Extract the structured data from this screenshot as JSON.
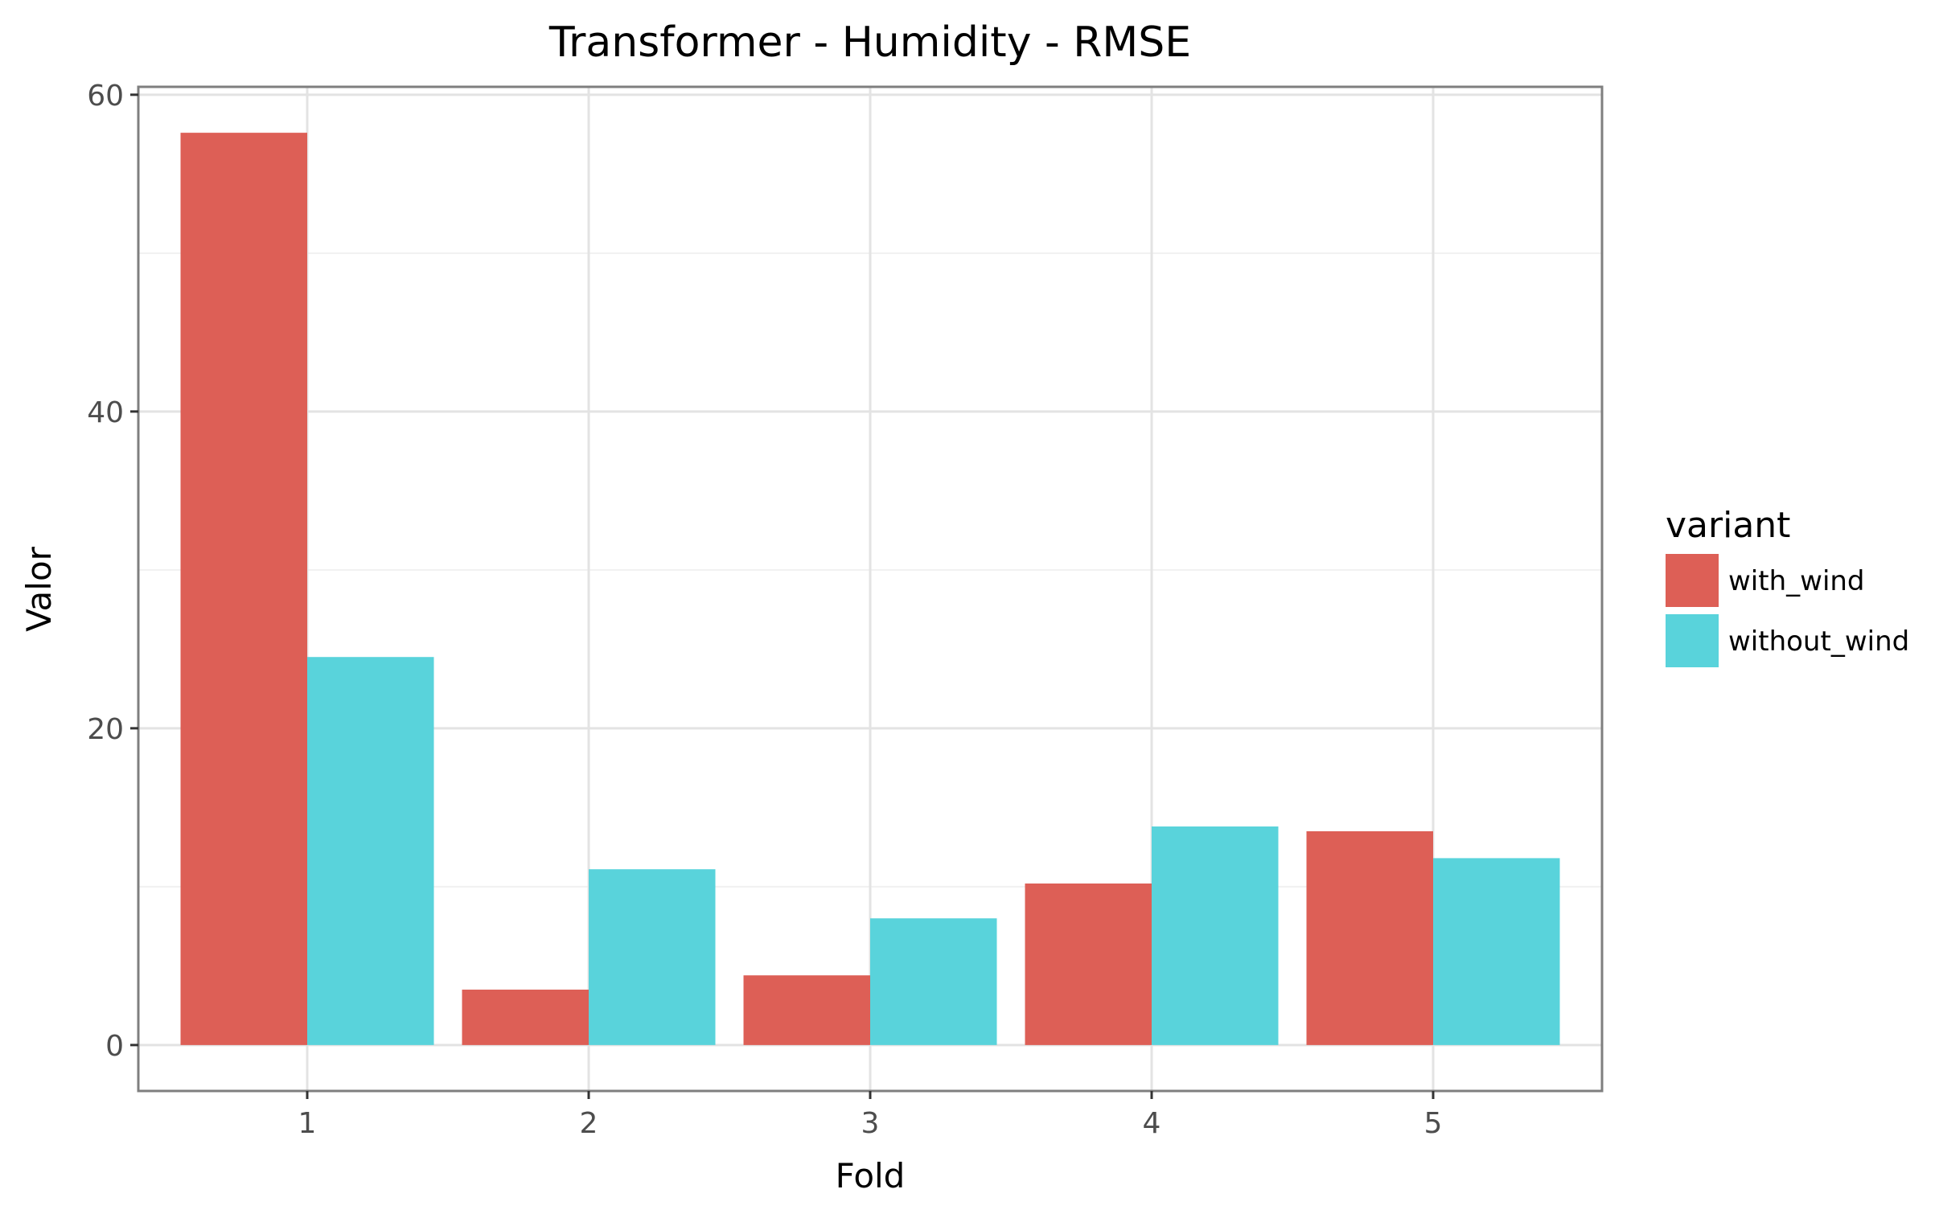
{
  "chart_data": {
    "type": "bar",
    "title": "Transformer - Humidity - RMSE",
    "xlabel": "Fold",
    "ylabel": "Valor",
    "categories": [
      "1",
      "2",
      "3",
      "4",
      "5"
    ],
    "series": [
      {
        "name": "with_wind",
        "color": "#DD5F56",
        "values": [
          57.6,
          3.5,
          4.4,
          10.2,
          13.5
        ]
      },
      {
        "name": "without_wind",
        "color": "#59D3DB",
        "values": [
          24.5,
          11.1,
          8.0,
          13.8,
          11.8
        ]
      }
    ],
    "ylim": [
      -2.9,
      60.5
    ],
    "yticks": [
      0,
      20,
      40,
      60
    ],
    "grid": true,
    "legend": {
      "title": "variant",
      "position": "right"
    }
  }
}
